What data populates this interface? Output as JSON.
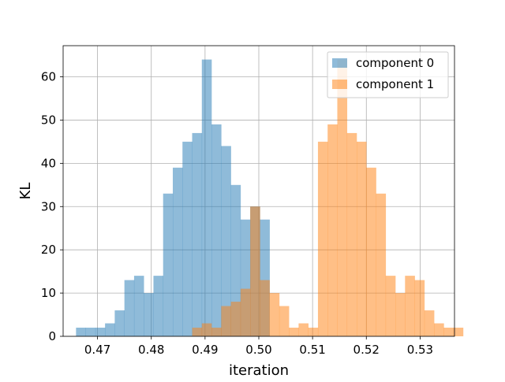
{
  "chart_data": {
    "type": "histogram",
    "title": "",
    "xlabel": "iteration",
    "ylabel": "KL",
    "xlim": [
      0.4636,
      0.5364
    ],
    "ylim": [
      0,
      67.2
    ],
    "x_ticks": [
      0.47,
      0.48,
      0.49,
      0.5,
      0.51,
      0.52,
      0.53
    ],
    "x_tick_labels": [
      "0.47",
      "0.48",
      "0.49",
      "0.50",
      "0.51",
      "0.52",
      "0.53"
    ],
    "y_ticks": [
      0,
      10,
      20,
      30,
      40,
      50,
      60
    ],
    "y_tick_labels": [
      "0",
      "10",
      "20",
      "30",
      "40",
      "50",
      "60"
    ],
    "grid": true,
    "legend_position": "top-right",
    "series": [
      {
        "name": "component 0",
        "color": "#1f77b4",
        "alpha": 0.5,
        "bin_start": 0.466,
        "bin_width": 0.0018,
        "counts": [
          2,
          2,
          2,
          3,
          6,
          13,
          14,
          10,
          14,
          33,
          39,
          45,
          47,
          64,
          49,
          44,
          35,
          27,
          30,
          27
        ]
      },
      {
        "name": "component 1",
        "color": "#ff7f0e",
        "alpha": 0.5,
        "bin_start": 0.4876,
        "bin_width": 0.0018,
        "counts": [
          2,
          3,
          2,
          7,
          8,
          11,
          30,
          13,
          10,
          7,
          2,
          3,
          2,
          45,
          49,
          64,
          47,
          45,
          39,
          33,
          14,
          10,
          14,
          13,
          6,
          3,
          2,
          2
        ]
      }
    ]
  }
}
